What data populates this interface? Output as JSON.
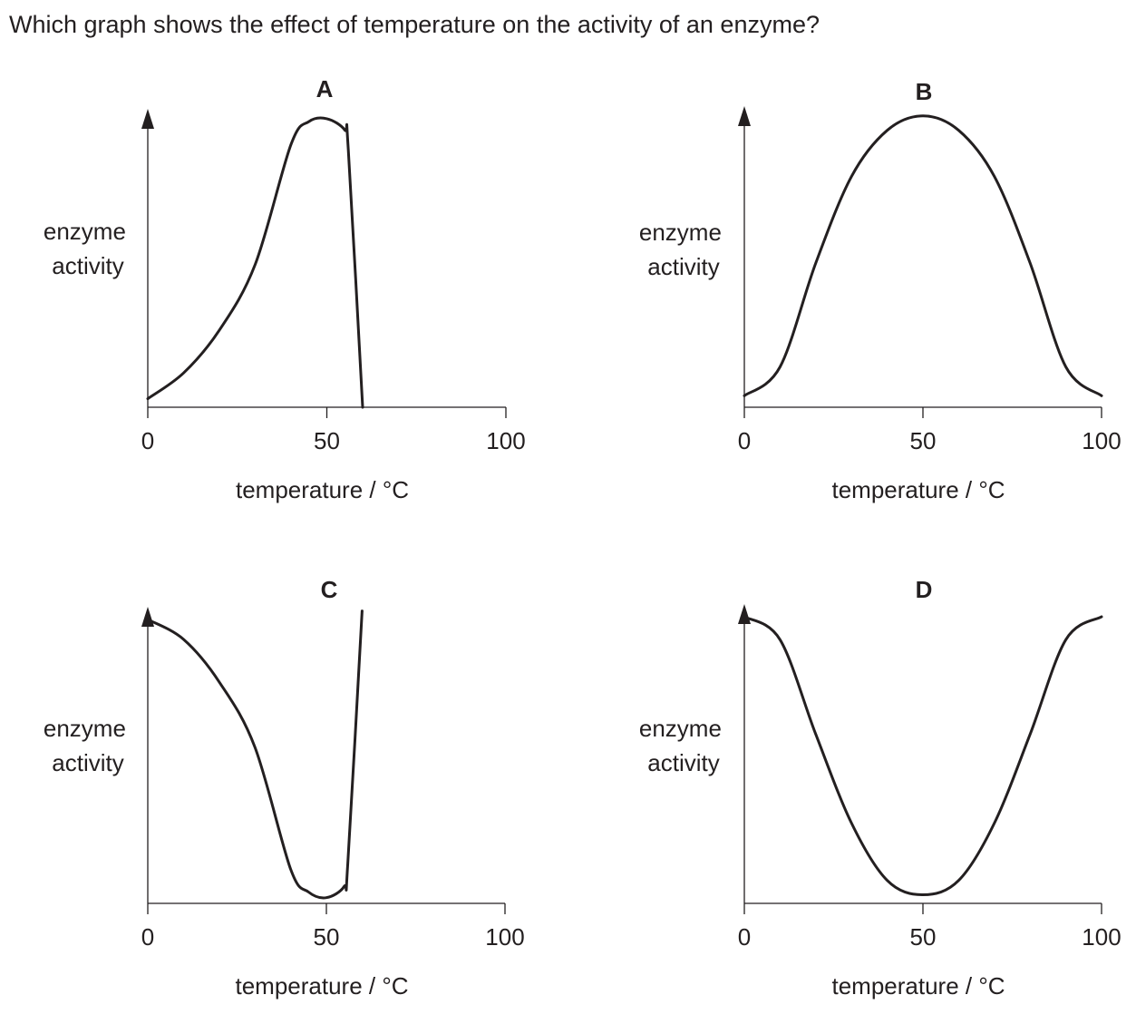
{
  "question": "Which graph shows the effect of temperature on the activity of an enzyme?",
  "colors": {
    "ink": "#231f20",
    "background": "#ffffff"
  },
  "chart_data": [
    {
      "type": "line",
      "title": "A",
      "ylabel_lines": [
        "enzyme",
        "activity"
      ],
      "xlabel": "temperature / °C",
      "xticks": [
        0,
        50,
        100
      ],
      "xlim": [
        0,
        100
      ],
      "ylim": [
        0,
        100
      ],
      "yticks_shown": false,
      "x": [
        0,
        10,
        20,
        30,
        40,
        45,
        50,
        55,
        56,
        60
      ],
      "y": [
        3,
        12,
        27,
        50,
        92,
        100,
        101,
        97,
        90,
        0
      ]
    },
    {
      "type": "line",
      "title": "B",
      "ylabel_lines": [
        "enzyme",
        "activity"
      ],
      "xlabel": "temperature / °C",
      "xticks": [
        0,
        50,
        100
      ],
      "xlim": [
        0,
        100
      ],
      "ylim": [
        0,
        100
      ],
      "yticks_shown": false,
      "x": [
        0,
        10,
        20,
        30,
        40,
        50,
        60,
        70,
        80,
        90,
        100
      ],
      "y": [
        4,
        14,
        50,
        80,
        96,
        101,
        96,
        80,
        50,
        14,
        4
      ]
    },
    {
      "type": "line",
      "title": "C",
      "ylabel_lines": [
        "enzyme",
        "activity"
      ],
      "xlabel": "temperature / °C",
      "xticks": [
        0,
        50,
        100
      ],
      "xlim": [
        0,
        100
      ],
      "ylim": [
        0,
        100
      ],
      "yticks_shown": false,
      "x": [
        0,
        10,
        20,
        30,
        40,
        45,
        50,
        55,
        56,
        60
      ],
      "y": [
        100,
        93,
        78,
        55,
        12,
        4,
        2,
        6,
        14,
        103
      ]
    },
    {
      "type": "line",
      "title": "D",
      "ylabel_lines": [
        "enzyme",
        "activity"
      ],
      "xlabel": "temperature / °C",
      "xticks": [
        0,
        50,
        100
      ],
      "xlim": [
        0,
        100
      ],
      "ylim": [
        0,
        100
      ],
      "yticks_shown": false,
      "x": [
        0,
        10,
        20,
        30,
        40,
        50,
        60,
        70,
        80,
        90,
        100
      ],
      "y": [
        100,
        92,
        59,
        28,
        8,
        3,
        8,
        28,
        59,
        92,
        100
      ]
    }
  ]
}
